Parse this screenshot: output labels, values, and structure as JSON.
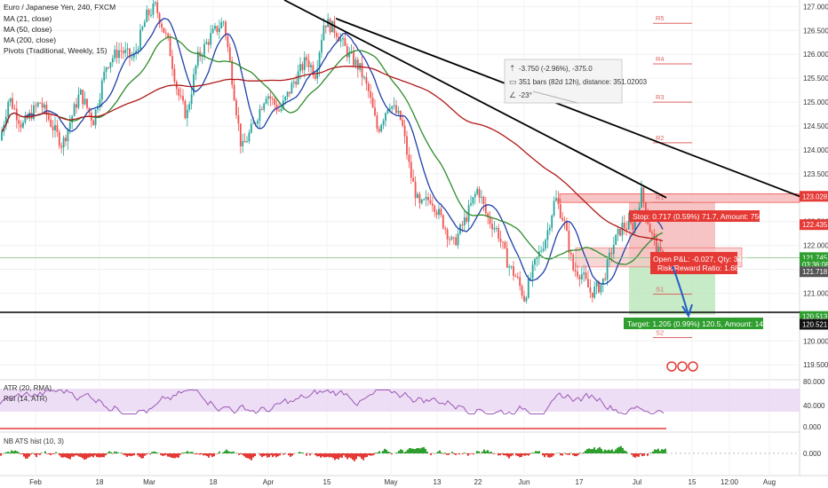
{
  "legend": {
    "symbol": "Euro / Japanese Yen, 240, FXCM",
    "studies": [
      "MA (21, close)",
      "MA (50, close)",
      "MA (200, close)",
      "Pivots (Traditional, Weekly, 15)"
    ]
  },
  "colors": {
    "ma21": "#1f3fa8",
    "ma50": "#2e8b2e",
    "ma200": "#b01818",
    "up": "#26a69a",
    "down": "#ef5350",
    "pivot": "#e06666",
    "trend": "#000000",
    "stop_zone": "#f4b5b5",
    "target_zone": "#b9e6b9",
    "rsi": "#9b59b6",
    "hist_pos": "#2e9e2e",
    "hist_neg": "#e53935"
  },
  "measure_box": {
    "line1": "-3.750 (-2.96%), -375.0",
    "line2": "351 bars (82d 12h), distance: 351.02003",
    "line3": "-23°"
  },
  "position": {
    "stop_label": "Stop: 0.717 (0.59%) 71.7, Amount: 750.48",
    "open_label_1": "Open P&L: -0.027, Qty: 348",
    "open_label_2": "Risk/Reward Ratio: 1.68",
    "target_label": "Target: 1.205 (0.99%) 120.5, Amount: 1419.34"
  },
  "price_axis": {
    "ticks": [
      "127.000",
      "126.500",
      "126.000",
      "125.500",
      "125.000",
      "124.500",
      "124.000",
      "123.500",
      "123.000",
      "122.500",
      "122.000",
      "121.500",
      "121.000",
      "120.500",
      "120.000",
      "119.500"
    ],
    "tick_values": [
      127,
      126.5,
      126,
      125.5,
      125,
      124.5,
      124,
      123.5,
      123,
      122.5,
      122,
      121.5,
      121,
      120.5,
      120,
      119.5
    ],
    "badges": [
      {
        "text": "123.028",
        "value": 123.028,
        "bg": "#e53935",
        "fg": "#ffffff"
      },
      {
        "text": "122.435",
        "value": 122.435,
        "bg": "#e53935",
        "fg": "#ffffff"
      },
      {
        "text": "121.745",
        "value": 121.745,
        "bg": "#2e9e2e",
        "fg": "#ffffff"
      },
      {
        "text": "03:36:08",
        "value": 121.6,
        "bg": "#2e9e2e",
        "fg": "#ffffff"
      },
      {
        "text": "121.718",
        "value": 121.45,
        "bg": "#555555",
        "fg": "#ffffff"
      },
      {
        "text": "120.513",
        "value": 120.513,
        "bg": "#2e9e2e",
        "fg": "#ffffff"
      },
      {
        "text": "120.521",
        "value": 120.35,
        "bg": "#111111",
        "fg": "#ffffff"
      }
    ]
  },
  "pivots": [
    {
      "label": "R5",
      "value": 126.65
    },
    {
      "label": "R4",
      "value": 125.8
    },
    {
      "label": "R3",
      "value": 125.0
    },
    {
      "label": "R2",
      "value": 124.15
    },
    {
      "label": "R1",
      "value": 122.9
    },
    {
      "label": "S1",
      "value": 120.98
    },
    {
      "label": "S2",
      "value": 120.07
    }
  ],
  "levels": {
    "horizontal_black": 120.6,
    "current_price_line": 121.745,
    "resistance_top": 123.05,
    "resistance_bottom": 122.9
  },
  "ind1": {
    "atr_label": "ATR (20, RMA)",
    "rsi_label": "RSI (14, ATR)",
    "ticks": [
      "80.000",
      "40.000",
      "0.000"
    ]
  },
  "ind2": {
    "label": "NB ATS hist (10, 3)",
    "tick": "0.000"
  },
  "time_axis": [
    "Feb",
    "18",
    "Mar",
    "18",
    "Apr",
    "15",
    "May",
    "13",
    "22",
    "Jun",
    "17",
    "Jul",
    "15",
    "12:00",
    "Aug"
  ],
  "chart_data": {
    "type": "candlestick",
    "title": "Euro / Japanese Yen, 240, FXCM",
    "series": [
      {
        "name": "MA (21, close)"
      },
      {
        "name": "MA (50, close)"
      },
      {
        "name": "MA (200, close)"
      }
    ],
    "approx_close_path": [
      {
        "x": "Feb",
        "y": 124.8
      },
      {
        "x": "18",
        "y": 124.6
      },
      {
        "x": "Mar",
        "y": 127.0
      },
      {
        "x": "18",
        "y": 125.6
      },
      {
        "x": "Apr",
        "y": 124.8
      },
      {
        "x": "15",
        "y": 126.7
      },
      {
        "x": "May",
        "y": 124.7
      },
      {
        "x": "13",
        "y": 122.8
      },
      {
        "x": "22",
        "y": 122.3
      },
      {
        "x": "Jun",
        "y": 121.0
      },
      {
        "x": "17",
        "y": 122.0
      },
      {
        "x": "Jul",
        "y": 121.8
      }
    ],
    "ylim": [
      119.3,
      127.1
    ],
    "trendlines": "two descending trendlines from mid-April highs to ~123.0"
  }
}
